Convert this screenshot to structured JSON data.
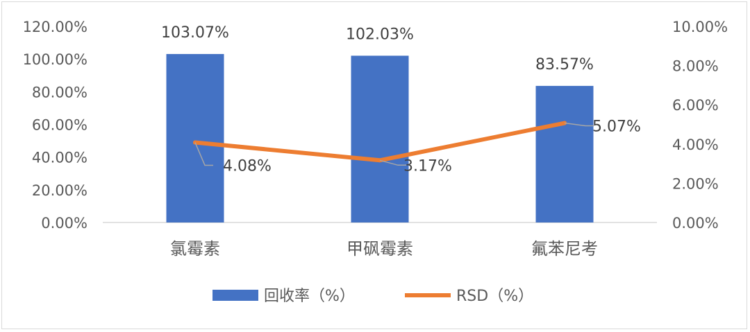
{
  "chart_data": {
    "type": "bar",
    "categories": [
      "氯霉素",
      "甲砜霉素",
      "氟苯尼考"
    ],
    "series": [
      {
        "name": "回收率（%）",
        "type": "bar",
        "axis": "left",
        "color": "#4472c4",
        "values": [
          103.07,
          102.03,
          83.57
        ],
        "labels": [
          "103.07%",
          "102.03%",
          "83.57%"
        ]
      },
      {
        "name": "RSD（%）",
        "type": "line",
        "axis": "right",
        "color": "#ed7d31",
        "values": [
          4.08,
          3.17,
          5.07
        ],
        "labels": [
          "4.08%",
          "3.17%",
          "5.07%"
        ]
      }
    ],
    "y_left": {
      "range": [
        0,
        120
      ],
      "ticks": [
        "0.00%",
        "20.00%",
        "40.00%",
        "60.00%",
        "80.00%",
        "100.00%",
        "120.00%"
      ]
    },
    "y_right": {
      "range": [
        0,
        10
      ],
      "ticks": [
        "0.00%",
        "2.00%",
        "4.00%",
        "6.00%",
        "8.00%",
        "10.00%"
      ]
    },
    "grid": false,
    "legend_position": "bottom"
  }
}
